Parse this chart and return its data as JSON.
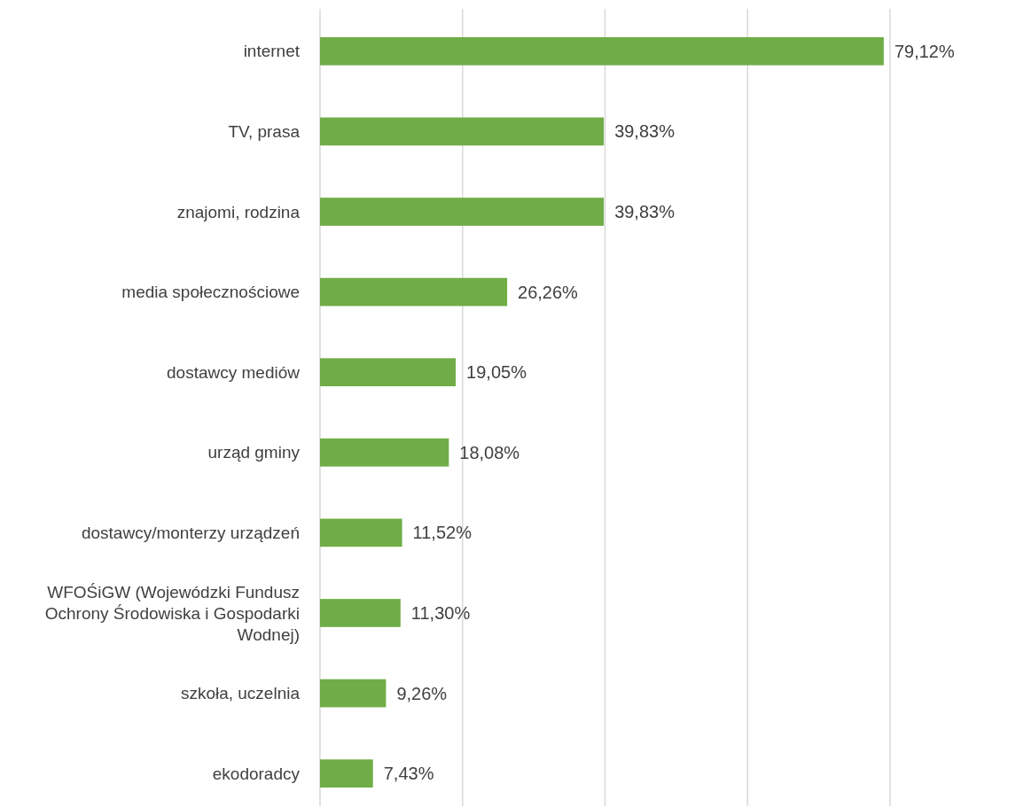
{
  "chart_data": {
    "type": "bar",
    "orientation": "horizontal",
    "categories": [
      "internet",
      "TV, prasa",
      "znajomi, rodzina",
      "media społecznościowe",
      "dostawcy mediów",
      "urząd gminy",
      "dostawcy/monterzy urządzeń",
      "WFOŚiGW (Wojewódzki Fundusz Ochrony Środowiska i Gospodarki Wodnej)",
      "szkoła, uczelnia",
      "ekodoradcy"
    ],
    "values": [
      79.12,
      39.83,
      39.83,
      26.26,
      19.05,
      18.08,
      11.52,
      11.3,
      9.26,
      7.43
    ],
    "value_labels": [
      "79,12%",
      "39,83%",
      "39,83%",
      "26,26%",
      "19,05%",
      "18,08%",
      "11,52%",
      "11,30%",
      "9,26%",
      "7,43%"
    ],
    "color": "#70ad47",
    "xlim": [
      0,
      80
    ],
    "xticks": [
      {
        "value": 0,
        "label": null
      },
      {
        "value": 20,
        "label": null
      },
      {
        "value": 40,
        "label": null
      },
      {
        "value": 60,
        "label": null
      },
      {
        "value": 80,
        "label": null
      }
    ],
    "grid": "x",
    "tick_labels": "y"
  }
}
